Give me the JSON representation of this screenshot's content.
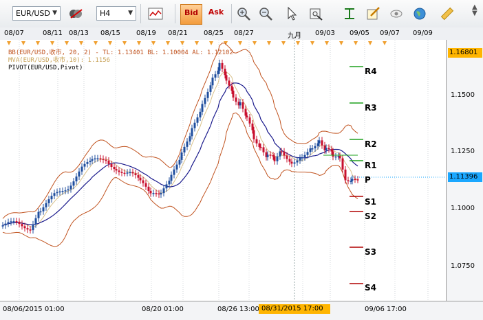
{
  "toolbar": {
    "symbol": "EUR/USD",
    "timeframe": "H4",
    "bid_label": "Bid",
    "ask_label": "Ask",
    "icons": [
      "currency-pair-icon",
      "chart-type-icon",
      "zoom-in-icon",
      "zoom-out-icon",
      "pointer-icon",
      "crosshair-icon",
      "indicators-icon",
      "draw-icon",
      "visibility-icon",
      "globe-icon",
      "ruler-icon"
    ]
  },
  "top_dates": [
    "08/07",
    "08/11",
    "08/13",
    "08/15",
    "08/19",
    "08/21",
    "08/25",
    "08/27",
    "九月",
    "09/03",
    "09/05",
    "09/07",
    "09/09"
  ],
  "legend": {
    "bb": "BB(EUR/USD,收市, 20, 2) - TL: 1.13401  BL: 1.10004  AL: 1.12102",
    "mva": "MVA(EUR/USD,收市,10): 1.1156",
    "pivot": "PIVOT(EUR/USD,Pivot)"
  },
  "yaxis": {
    "labels": [
      "1.1500",
      "1.1250",
      "1.1000",
      "1.0750"
    ],
    "top_price": "1.16801",
    "current_price": "1.11396"
  },
  "pivots": [
    "R4",
    "R3",
    "R2",
    "R1",
    "P",
    "S1",
    "S2",
    "S3",
    "S4"
  ],
  "xaxis": {
    "labels": [
      "08/06/2015 01:00",
      "08/20 01:00",
      "08/26 13:00",
      "09/06 17:00"
    ],
    "highlight": "08/31/2015 17:00"
  },
  "colors": {
    "bull": "#1f4e9e",
    "bear": "#c8102e",
    "bollinger": "#c0521e",
    "mva": "#d8c08a",
    "ema": "#1a1a8c",
    "pivot_r": "#1ea01e",
    "pivot_s": "#b00000",
    "accent": "#ffb500"
  }
}
